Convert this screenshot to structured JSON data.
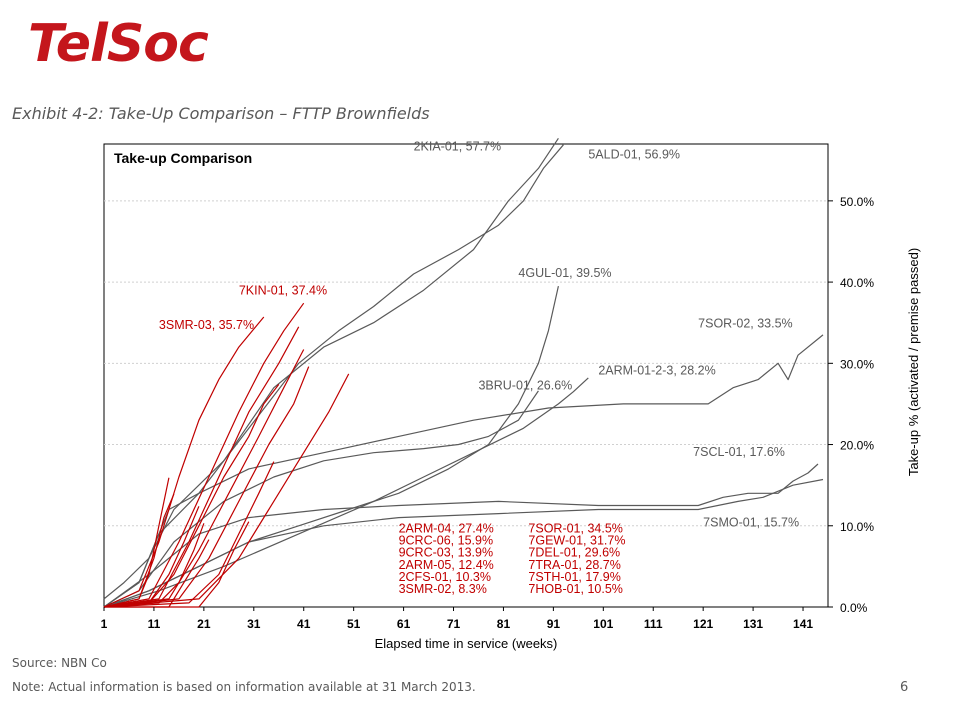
{
  "header": {
    "logo_text": "TelSoc",
    "exhibit_title": "Exhibit 4-2: Take-Up Comparison – FTTP Brownfields"
  },
  "footer": {
    "source": "Source: NBN Co",
    "note": "Note: Actual information is based on information available at 31 March 2013.",
    "page_number": "6"
  },
  "chart_data": {
    "type": "line",
    "title": "Take-up Comparison",
    "xlabel": "Elapsed time in service (weeks)",
    "ylabel": "Take-up % (activated / premise passed)",
    "xlim": [
      1,
      146
    ],
    "ylim": [
      0,
      57
    ],
    "x_ticks": [
      1,
      11,
      21,
      31,
      41,
      51,
      61,
      71,
      81,
      91,
      101,
      111,
      121,
      131,
      141
    ],
    "y_ticks": [
      0,
      10,
      20,
      30,
      40,
      50
    ],
    "y_tick_labels": [
      "0.0%",
      "10.0%",
      "20.0%",
      "30.0%",
      "40.0%",
      "50.0%"
    ],
    "y_axis_position": "right",
    "grid": "horizontal",
    "colors": {
      "gray": "#5a5a5a",
      "red": "#c00000"
    },
    "series": [
      {
        "name": "2KIA-01, 57.7%",
        "color": "gray",
        "points": [
          [
            1,
            1
          ],
          [
            5,
            3
          ],
          [
            10,
            6
          ],
          [
            15,
            12
          ],
          [
            25,
            18
          ],
          [
            35,
            27
          ],
          [
            45,
            32
          ],
          [
            55,
            35
          ],
          [
            65,
            39
          ],
          [
            75,
            44
          ],
          [
            82,
            50
          ],
          [
            88,
            54
          ],
          [
            92,
            57.7
          ]
        ]
      },
      {
        "name": "5ALD-01, 56.9%",
        "color": "gray",
        "points": [
          [
            1,
            0
          ],
          [
            8,
            3
          ],
          [
            12,
            9
          ],
          [
            20,
            14
          ],
          [
            30,
            22
          ],
          [
            40,
            30
          ],
          [
            48,
            34
          ],
          [
            55,
            37
          ],
          [
            63,
            41
          ],
          [
            72,
            44
          ],
          [
            80,
            47
          ],
          [
            85,
            50
          ],
          [
            89,
            54
          ],
          [
            93,
            56.9
          ]
        ]
      },
      {
        "name": "4GUL-01, 39.5%",
        "color": "gray",
        "points": [
          [
            1,
            0
          ],
          [
            10,
            2
          ],
          [
            20,
            5
          ],
          [
            30,
            8
          ],
          [
            40,
            10
          ],
          [
            50,
            12
          ],
          [
            60,
            14
          ],
          [
            70,
            17
          ],
          [
            78,
            20
          ],
          [
            84,
            25
          ],
          [
            88,
            30
          ],
          [
            90,
            34
          ],
          [
            92,
            39.5
          ]
        ]
      },
      {
        "name": "3BRU-01, 26.6%",
        "color": "gray",
        "points": [
          [
            1,
            0
          ],
          [
            8,
            2
          ],
          [
            15,
            8
          ],
          [
            25,
            13
          ],
          [
            35,
            16
          ],
          [
            45,
            18
          ],
          [
            55,
            19
          ],
          [
            65,
            19.5
          ],
          [
            72,
            20
          ],
          [
            78,
            21
          ],
          [
            84,
            23
          ],
          [
            88,
            26.6
          ]
        ]
      },
      {
        "name": "2ARM-01-2-3, 28.2%",
        "color": "gray",
        "points": [
          [
            1,
            0
          ],
          [
            12,
            2
          ],
          [
            25,
            5
          ],
          [
            40,
            9
          ],
          [
            55,
            13
          ],
          [
            65,
            16
          ],
          [
            75,
            19
          ],
          [
            85,
            22
          ],
          [
            92,
            25
          ],
          [
            95,
            26.5
          ],
          [
            98,
            28.2
          ]
        ]
      },
      {
        "name": "7SOR-02, 33.5%",
        "color": "gray",
        "points": [
          [
            1,
            0
          ],
          [
            8,
            3
          ],
          [
            14,
            12
          ],
          [
            20,
            14
          ],
          [
            30,
            17
          ],
          [
            45,
            19
          ],
          [
            60,
            21
          ],
          [
            75,
            23
          ],
          [
            90,
            24.5
          ],
          [
            105,
            25
          ],
          [
            122,
            25
          ],
          [
            127,
            27
          ],
          [
            132,
            28
          ],
          [
            136,
            30
          ],
          [
            138,
            28
          ],
          [
            140,
            31
          ],
          [
            145,
            33.5
          ]
        ]
      },
      {
        "name": "7SCL-01, 17.6%",
        "color": "gray",
        "points": [
          [
            1,
            0
          ],
          [
            10,
            4
          ],
          [
            20,
            9
          ],
          [
            30,
            11
          ],
          [
            45,
            12
          ],
          [
            60,
            12.5
          ],
          [
            80,
            13
          ],
          [
            100,
            12.5
          ],
          [
            120,
            12.5
          ],
          [
            125,
            13.5
          ],
          [
            130,
            14
          ],
          [
            136,
            14
          ],
          [
            139,
            15.5
          ],
          [
            142,
            16.5
          ],
          [
            144,
            17.6
          ]
        ]
      },
      {
        "name": "7SMO-01, 15.7%",
        "color": "gray",
        "points": [
          [
            1,
            0
          ],
          [
            10,
            2
          ],
          [
            20,
            5
          ],
          [
            30,
            8
          ],
          [
            45,
            10
          ],
          [
            60,
            11
          ],
          [
            80,
            11.5
          ],
          [
            100,
            12
          ],
          [
            120,
            12
          ],
          [
            128,
            13
          ],
          [
            133,
            13.5
          ],
          [
            139,
            15
          ],
          [
            145,
            15.7
          ]
        ]
      },
      {
        "name": "2ARM-04, 27.4%",
        "color": "red",
        "points": [
          [
            1,
            0
          ],
          [
            10,
            0.5
          ],
          [
            15,
            4
          ],
          [
            20,
            10
          ],
          [
            25,
            16
          ],
          [
            30,
            21
          ],
          [
            33,
            25
          ],
          [
            36,
            27.4
          ]
        ]
      },
      {
        "name": "9CRC-06, 15.9%",
        "color": "red",
        "points": [
          [
            1,
            0
          ],
          [
            8,
            1
          ],
          [
            10,
            4
          ],
          [
            12,
            10
          ],
          [
            14,
            15.9
          ]
        ]
      },
      {
        "name": "9CRC-03, 13.9%",
        "color": "red",
        "points": [
          [
            1,
            0
          ],
          [
            8,
            1
          ],
          [
            11,
            6
          ],
          [
            13,
            11
          ],
          [
            15,
            13.9
          ]
        ]
      },
      {
        "name": "2ARM-05, 12.4%",
        "color": "red",
        "points": [
          [
            1,
            0
          ],
          [
            10,
            0.5
          ],
          [
            14,
            4
          ],
          [
            17,
            8
          ],
          [
            20,
            12.4
          ]
        ]
      },
      {
        "name": "2CFS-01, 10.3%",
        "color": "red",
        "points": [
          [
            1,
            0
          ],
          [
            12,
            0.5
          ],
          [
            16,
            3
          ],
          [
            19,
            7
          ],
          [
            21,
            10.3
          ]
        ]
      },
      {
        "name": "3SMR-02, 8.3%",
        "color": "red",
        "points": [
          [
            1,
            0
          ],
          [
            14,
            0
          ],
          [
            17,
            3
          ],
          [
            20,
            6
          ],
          [
            22,
            8.3
          ]
        ]
      },
      {
        "name": "7SOR-01, 34.5%",
        "color": "red",
        "points": [
          [
            1,
            0
          ],
          [
            12,
            1
          ],
          [
            18,
            8
          ],
          [
            24,
            16
          ],
          [
            30,
            24
          ],
          [
            36,
            30
          ],
          [
            40,
            34.5
          ]
        ]
      },
      {
        "name": "7GEW-01, 31.7%",
        "color": "red",
        "points": [
          [
            1,
            0
          ],
          [
            14,
            1
          ],
          [
            20,
            7
          ],
          [
            26,
            14
          ],
          [
            32,
            21
          ],
          [
            37,
            27
          ],
          [
            41,
            31.7
          ]
        ]
      },
      {
        "name": "7DEL-01, 29.6%",
        "color": "red",
        "points": [
          [
            1,
            0
          ],
          [
            16,
            1
          ],
          [
            22,
            6
          ],
          [
            28,
            13
          ],
          [
            34,
            20
          ],
          [
            39,
            25
          ],
          [
            42,
            29.6
          ]
        ]
      },
      {
        "name": "7TRA-01, 28.7%",
        "color": "red",
        "points": [
          [
            1,
            0
          ],
          [
            20,
            1
          ],
          [
            28,
            6
          ],
          [
            34,
            12
          ],
          [
            40,
            18
          ],
          [
            46,
            24
          ],
          [
            50,
            28.7
          ]
        ]
      },
      {
        "name": "7STH-01, 17.9%",
        "color": "red",
        "points": [
          [
            1,
            0
          ],
          [
            18,
            0.5
          ],
          [
            24,
            4
          ],
          [
            28,
            9
          ],
          [
            32,
            14
          ],
          [
            35,
            17.9
          ]
        ]
      },
      {
        "name": "7HOB-01, 10.5%",
        "color": "red",
        "points": [
          [
            1,
            0
          ],
          [
            20,
            0
          ],
          [
            24,
            3
          ],
          [
            27,
            7
          ],
          [
            30,
            10.5
          ]
        ]
      },
      {
        "name": "7KIN-01, 37.4%",
        "color": "red",
        "points": [
          [
            1,
            0
          ],
          [
            10,
            1
          ],
          [
            16,
            8
          ],
          [
            22,
            16
          ],
          [
            28,
            24
          ],
          [
            33,
            30
          ],
          [
            37,
            34
          ],
          [
            41,
            37.4
          ]
        ]
      },
      {
        "name": "3SMR-03, 35.7%",
        "color": "red",
        "points": [
          [
            1,
            0
          ],
          [
            8,
            2
          ],
          [
            12,
            8
          ],
          [
            16,
            16
          ],
          [
            20,
            23
          ],
          [
            24,
            28
          ],
          [
            28,
            32
          ],
          [
            33,
            35.7
          ]
        ]
      }
    ],
    "annotations": [
      {
        "text": "2KIA-01, 57.7%",
        "color": "gray",
        "x": 63,
        "y": 56.2
      },
      {
        "text": "5ALD-01, 56.9%",
        "color": "gray",
        "x": 98,
        "y": 55.2
      },
      {
        "text": "4GUL-01, 39.5%",
        "color": "gray",
        "x": 84,
        "y": 40.6
      },
      {
        "text": "7KIN-01, 37.4%",
        "color": "red",
        "x": 28,
        "y": 38.5
      },
      {
        "text": "3SMR-03, 35.7%",
        "color": "red",
        "x": 12,
        "y": 34.2
      },
      {
        "text": "7SOR-02, 33.5%",
        "color": "gray",
        "x": 120,
        "y": 34.4
      },
      {
        "text": "2ARM-01-2-3, 28.2%",
        "color": "gray",
        "x": 100,
        "y": 28.6
      },
      {
        "text": "3BRU-01, 26.6%",
        "color": "gray",
        "x": 76,
        "y": 26.8
      },
      {
        "text": "7SCL-01, 17.6%",
        "color": "gray",
        "x": 119,
        "y": 18.6
      },
      {
        "text": "7SMO-01, 15.7%",
        "color": "gray",
        "x": 121,
        "y": 9.9
      },
      {
        "text": "2ARM-04, 27.4%",
        "color": "red",
        "x": 60,
        "y": 9.2
      },
      {
        "text": "9CRC-06, 15.9%",
        "color": "red",
        "x": 60,
        "y": 7.7
      },
      {
        "text": "9CRC-03, 13.9%",
        "color": "red",
        "x": 60,
        "y": 6.2
      },
      {
        "text": "2ARM-05, 12.4%",
        "color": "red",
        "x": 60,
        "y": 4.7
      },
      {
        "text": "2CFS-01, 10.3%",
        "color": "red",
        "x": 60,
        "y": 3.2
      },
      {
        "text": "3SMR-02, 8.3%",
        "color": "red",
        "x": 60,
        "y": 1.7
      },
      {
        "text": "7SOR-01, 34.5%",
        "color": "red",
        "x": 86,
        "y": 9.2
      },
      {
        "text": "7GEW-01, 31.7%",
        "color": "red",
        "x": 86,
        "y": 7.7
      },
      {
        "text": "7DEL-01, 29.6%",
        "color": "red",
        "x": 86,
        "y": 6.2
      },
      {
        "text": "7TRA-01, 28.7%",
        "color": "red",
        "x": 86,
        "y": 4.7
      },
      {
        "text": "7STH-01, 17.9%",
        "color": "red",
        "x": 86,
        "y": 3.2
      },
      {
        "text": "7HOB-01, 10.5%",
        "color": "red",
        "x": 86,
        "y": 1.7
      }
    ]
  }
}
